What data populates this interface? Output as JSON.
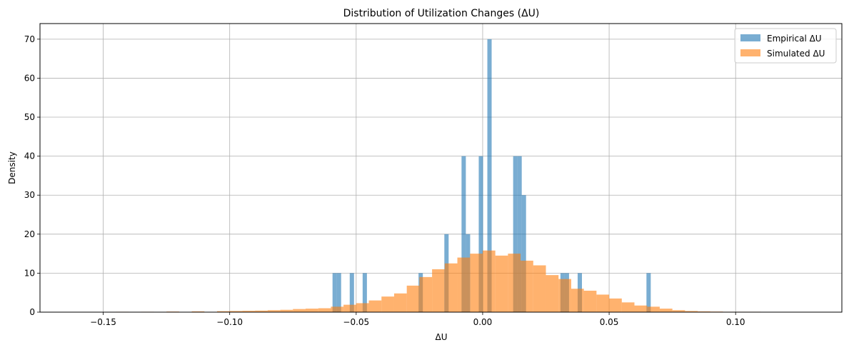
{
  "chart_data": {
    "type": "bar",
    "title": "Distribution of Utilization Changes (ΔU)",
    "xlabel": "ΔU",
    "ylabel": "Density",
    "xlim": [
      -0.175,
      0.142
    ],
    "ylim": [
      0,
      74
    ],
    "xticks": [
      -0.15,
      -0.1,
      -0.05,
      0.0,
      0.05,
      0.1
    ],
    "xtick_labels": [
      "−0.15",
      "−0.10",
      "−0.05",
      "0.00",
      "0.05",
      "0.10"
    ],
    "yticks": [
      0,
      10,
      20,
      30,
      40,
      50,
      60,
      70
    ],
    "ytick_labels": [
      "0",
      "10",
      "20",
      "30",
      "40",
      "50",
      "60",
      "70"
    ],
    "grid": true,
    "legend_position": "top-right",
    "series": [
      {
        "name": "Empirical ΔU",
        "color": "#1f77b4",
        "opacity": 0.6,
        "bin_width": 0.0017,
        "bins": [
          {
            "x": -0.0585,
            "y": 10
          },
          {
            "x": -0.0568,
            "y": 10
          },
          {
            "x": -0.0517,
            "y": 10
          },
          {
            "x": -0.0466,
            "y": 10
          },
          {
            "x": -0.0245,
            "y": 10
          },
          {
            "x": -0.0143,
            "y": 20
          },
          {
            "x": -0.0075,
            "y": 40
          },
          {
            "x": -0.0058,
            "y": 20
          },
          {
            "x": -0.0007,
            "y": 40
          },
          {
            "x": 0.0027,
            "y": 70
          },
          {
            "x": 0.0129,
            "y": 40
          },
          {
            "x": 0.0146,
            "y": 40
          },
          {
            "x": 0.0163,
            "y": 30
          },
          {
            "x": 0.0316,
            "y": 10
          },
          {
            "x": 0.0333,
            "y": 10
          },
          {
            "x": 0.0384,
            "y": 10
          },
          {
            "x": 0.0656,
            "y": 10
          }
        ]
      },
      {
        "name": "Simulated ΔU",
        "color": "#ff7f0e",
        "opacity": 0.6,
        "bin_width": 0.005,
        "bins": [
          {
            "x": -0.1425,
            "y": 0.1
          },
          {
            "x": -0.1325,
            "y": 0.1
          },
          {
            "x": -0.1225,
            "y": 0.15
          },
          {
            "x": -0.1125,
            "y": 0.2
          },
          {
            "x": -0.1025,
            "y": 0.25
          },
          {
            "x": -0.0975,
            "y": 0.3
          },
          {
            "x": -0.0925,
            "y": 0.35
          },
          {
            "x": -0.0875,
            "y": 0.4
          },
          {
            "x": -0.0825,
            "y": 0.5
          },
          {
            "x": -0.0775,
            "y": 0.6
          },
          {
            "x": -0.0725,
            "y": 0.8
          },
          {
            "x": -0.0675,
            "y": 0.9
          },
          {
            "x": -0.0625,
            "y": 1.0
          },
          {
            "x": -0.0575,
            "y": 1.4
          },
          {
            "x": -0.0525,
            "y": 1.9
          },
          {
            "x": -0.0475,
            "y": 2.3
          },
          {
            "x": -0.0425,
            "y": 3.0
          },
          {
            "x": -0.0375,
            "y": 4.0
          },
          {
            "x": -0.0325,
            "y": 4.8
          },
          {
            "x": -0.0275,
            "y": 6.8
          },
          {
            "x": -0.0225,
            "y": 9.0
          },
          {
            "x": -0.0175,
            "y": 11.0
          },
          {
            "x": -0.0125,
            "y": 12.5
          },
          {
            "x": -0.0075,
            "y": 14.0
          },
          {
            "x": -0.0025,
            "y": 15.0
          },
          {
            "x": 0.0025,
            "y": 15.8
          },
          {
            "x": 0.0075,
            "y": 14.5
          },
          {
            "x": 0.0125,
            "y": 15.0
          },
          {
            "x": 0.0175,
            "y": 13.2
          },
          {
            "x": 0.0225,
            "y": 12.0
          },
          {
            "x": 0.0275,
            "y": 9.5
          },
          {
            "x": 0.0325,
            "y": 8.5
          },
          {
            "x": 0.0375,
            "y": 6.0
          },
          {
            "x": 0.0425,
            "y": 5.5
          },
          {
            "x": 0.0475,
            "y": 4.5
          },
          {
            "x": 0.0525,
            "y": 3.5
          },
          {
            "x": 0.0575,
            "y": 2.5
          },
          {
            "x": 0.0625,
            "y": 1.7
          },
          {
            "x": 0.0675,
            "y": 1.4
          },
          {
            "x": 0.0725,
            "y": 0.9
          },
          {
            "x": 0.0775,
            "y": 0.5
          },
          {
            "x": 0.0825,
            "y": 0.3
          },
          {
            "x": 0.0875,
            "y": 0.2
          },
          {
            "x": 0.0925,
            "y": 0.15
          },
          {
            "x": 0.0975,
            "y": 0.1
          },
          {
            "x": 0.1025,
            "y": 0.1
          },
          {
            "x": 0.1075,
            "y": 0.1
          }
        ]
      }
    ]
  }
}
